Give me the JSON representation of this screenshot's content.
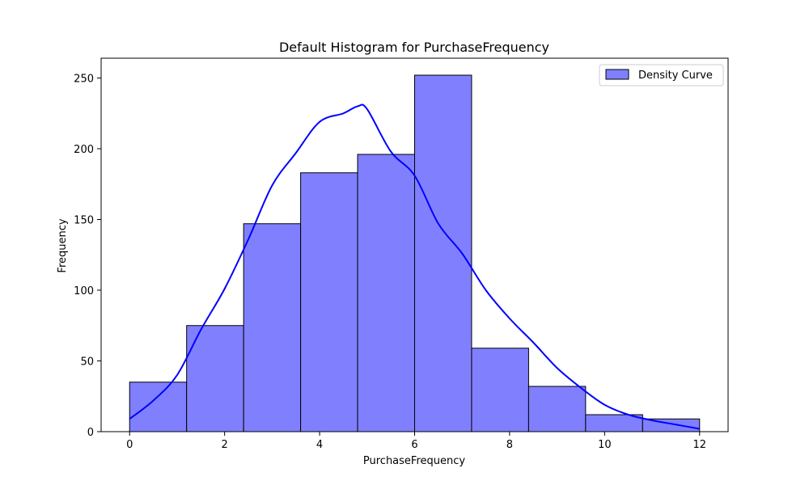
{
  "chart_data": {
    "type": "bar",
    "title": "Default Histogram for PurchaseFrequency",
    "xlabel": "PurchaseFrequency",
    "ylabel": "Frequency",
    "bin_edges": [
      0,
      1.2,
      2.4,
      3.6,
      4.8,
      6.0,
      7.2,
      8.4,
      9.6,
      10.8,
      12.0
    ],
    "values": [
      35,
      75,
      147,
      183,
      196,
      252,
      59,
      32,
      12,
      9
    ],
    "xlim": [
      -0.6,
      12.6
    ],
    "ylim": [
      0,
      264
    ],
    "x_ticks": [
      0,
      2,
      4,
      6,
      8,
      10,
      12
    ],
    "y_ticks": [
      0,
      50,
      100,
      150,
      200,
      250
    ],
    "grid": false,
    "legend": {
      "position": "top-right",
      "entries": [
        {
          "label": "Density Curve"
        }
      ]
    },
    "density_curve": {
      "x": [
        0,
        0.5,
        1,
        1.5,
        2,
        2.5,
        3,
        3.5,
        4,
        4.5,
        4.8,
        5,
        5.5,
        6,
        6.5,
        7,
        7.5,
        8,
        8.5,
        9,
        9.5,
        10,
        10.5,
        11,
        11.5,
        12
      ],
      "y": [
        9,
        22,
        40,
        72,
        101,
        136,
        174,
        197,
        219,
        225,
        230,
        228,
        198,
        181,
        147,
        126,
        100,
        80,
        63,
        45,
        31,
        19,
        12,
        8,
        5,
        2
      ]
    },
    "colors": {
      "bar_fill": "#8080ff",
      "bar_edge": "#000000",
      "curve": "#0000ff"
    }
  }
}
